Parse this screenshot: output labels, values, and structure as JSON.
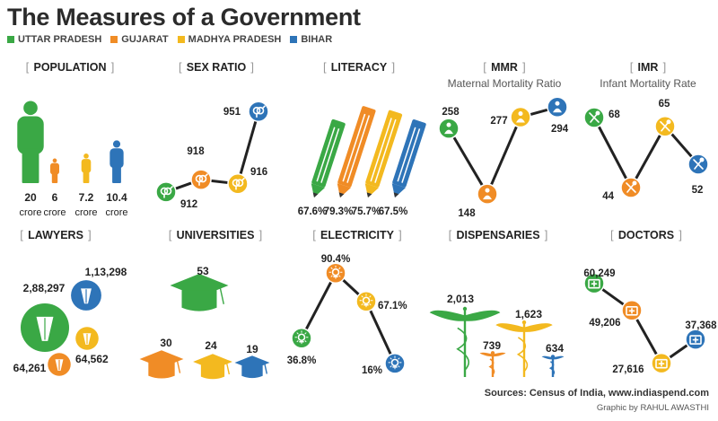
{
  "header": {
    "title": "The Measures of a Government"
  },
  "colors": {
    "uttar_pradesh": "#3aa845",
    "gujarat": "#f08c26",
    "madhya_pradesh": "#f3b91f",
    "bihar": "#2e74b8",
    "line": "#222222",
    "bracket": "#999999"
  },
  "legend": [
    {
      "name": "UTTAR PRADESH",
      "color": "#3aa845"
    },
    {
      "name": "GUJARAT",
      "color": "#f08c26"
    },
    {
      "name": "MADHYA PRADESH",
      "color": "#f3b91f"
    },
    {
      "name": "BIHAR",
      "color": "#2e74b8"
    }
  ],
  "footer": {
    "sources": "Sources: Census of India, www.indiaspend.com",
    "credit": "Graphic by RAHUL AWASTHI"
  },
  "chart_data": [
    {
      "id": "population",
      "type": "bar",
      "title": "POPULATION",
      "icon": "person-icon",
      "values": [
        20,
        6,
        7.2,
        10.4
      ],
      "labels": [
        "20",
        "6",
        "7.2",
        "10.4"
      ],
      "sub": [
        "crore",
        "crore",
        "crore",
        "crore"
      ]
    },
    {
      "id": "sex_ratio",
      "type": "line",
      "title": "SEX RATIO",
      "icon": "gender-icon",
      "values": [
        912,
        918,
        916,
        951
      ],
      "labels": [
        "912",
        "918",
        "916",
        "951"
      ]
    },
    {
      "id": "literacy",
      "type": "bar",
      "title": "LITERACY",
      "icon": "pencil-icon",
      "values": [
        67.6,
        79.3,
        75.7,
        67.5
      ],
      "labels": [
        "67.6%",
        "79.3%",
        "75.7%",
        "67.5%"
      ]
    },
    {
      "id": "mmr",
      "type": "line",
      "title": "MMR",
      "subtitle": "Maternal Mortality Ratio",
      "icon": "mother-icon",
      "values": [
        258,
        148,
        277,
        294
      ],
      "labels": [
        "258",
        "148",
        "277",
        "294"
      ]
    },
    {
      "id": "imr",
      "type": "line",
      "title": "IMR",
      "subtitle": "Infant Mortality Rate",
      "icon": "baby-icon",
      "values": [
        68,
        44,
        65,
        52
      ],
      "labels": [
        "68",
        "44",
        "65",
        "52"
      ]
    },
    {
      "id": "lawyers",
      "type": "bubble",
      "title": "LAWYERS",
      "icon": "lawyer-icon",
      "values": [
        288297,
        64261,
        64562,
        113298
      ],
      "labels": [
        "2,88,297",
        "64,261",
        "64,562",
        "1,13,298"
      ]
    },
    {
      "id": "universities",
      "type": "bar",
      "title": "UNIVERSITIES",
      "icon": "graduation-cap-icon",
      "values": [
        53,
        30,
        24,
        19
      ],
      "labels": [
        "53",
        "30",
        "24",
        "19"
      ]
    },
    {
      "id": "electricity",
      "type": "line",
      "title": "ELECTRICITY",
      "icon": "bulb-icon",
      "values": [
        36.8,
        90.4,
        67.1,
        16
      ],
      "labels": [
        "36.8%",
        "90.4%",
        "67.1%",
        "16%"
      ]
    },
    {
      "id": "dispensaries",
      "type": "bar",
      "title": "DISPENSARIES",
      "icon": "caduceus-icon",
      "values": [
        2013,
        739,
        1623,
        634
      ],
      "labels": [
        "2,013",
        "739",
        "1,623",
        "634"
      ]
    },
    {
      "id": "doctors",
      "type": "line",
      "title": "DOCTORS",
      "icon": "medical-kit-icon",
      "values": [
        60249,
        49206,
        27616,
        37368
      ],
      "labels": [
        "60,249",
        "49,206",
        "27,616",
        "37,368"
      ]
    }
  ]
}
